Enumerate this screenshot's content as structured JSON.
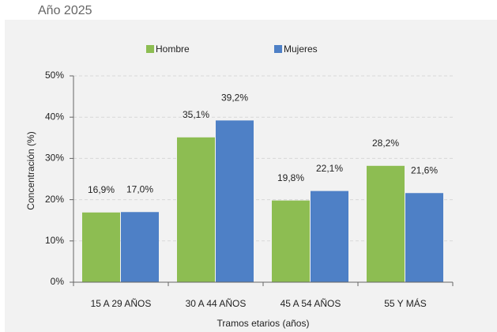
{
  "chart_data": {
    "type": "bar",
    "subtitle": "Año 2025",
    "categories": [
      "15 A 29 AÑOS",
      "30 A 44 AÑOS",
      "45 A 54 AÑOS",
      "55 Y MÁS"
    ],
    "series": [
      {
        "name": "Hombre",
        "color": "#8dbd52",
        "values": [
          16.9,
          35.1,
          19.8,
          28.2
        ],
        "value_labels": [
          "16,9%",
          "35,1%",
          "19,8%",
          "28,2%"
        ]
      },
      {
        "name": "Mujeres",
        "color": "#4e80c6",
        "values": [
          17.0,
          39.2,
          22.1,
          21.6
        ],
        "value_labels": [
          "17,0%",
          "39,2%",
          "22,1%",
          "21,6%"
        ]
      }
    ],
    "ylabel": "Concentración (%)",
    "xlabel": "Tramos etarios (años)",
    "ylim": [
      0,
      50
    ],
    "yticks": [
      {
        "value": 0,
        "label": "0%"
      },
      {
        "value": 10,
        "label": "10%"
      },
      {
        "value": 20,
        "label": "20%"
      },
      {
        "value": 30,
        "label": "30%"
      },
      {
        "value": 40,
        "label": "40%"
      },
      {
        "value": 50,
        "label": "50%"
      }
    ],
    "grid": true,
    "legend": "top"
  }
}
